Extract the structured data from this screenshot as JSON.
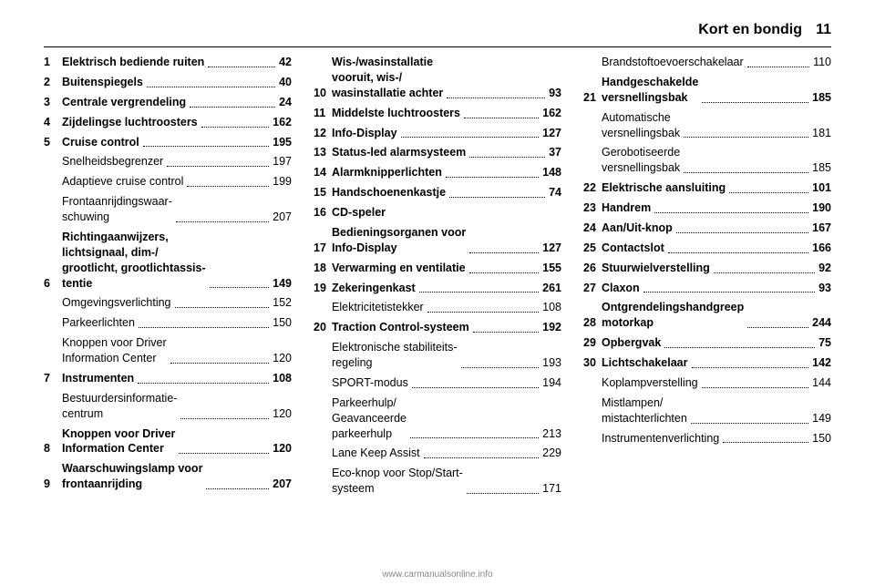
{
  "header": {
    "title": "Kort en bondig",
    "page_number": "11"
  },
  "footer": {
    "url": "www.carmanualsonline.info"
  },
  "columns": [
    [
      {
        "n": "1",
        "label": "Elektrisch bediende ruiten",
        "page": "42"
      },
      {
        "n": "2",
        "label": "Buitenspiegels",
        "page": "40"
      },
      {
        "n": "3",
        "label": "Centrale vergrendeling",
        "page": "24"
      },
      {
        "n": "4",
        "label": "Zijdelingse luchtroosters",
        "page": "162"
      },
      {
        "n": "5",
        "label": "Cruise control",
        "page": "195"
      },
      {
        "n": "",
        "label": "Snelheidsbegrenzer",
        "page": "197",
        "sub": true
      },
      {
        "n": "",
        "label": "Adaptieve cruise control",
        "page": "199",
        "sub": true
      },
      {
        "n": "",
        "label": "Frontaanrijdingswaar-\nschuwing",
        "page": "207",
        "sub": true
      },
      {
        "n": "6",
        "label": "Richtingaanwijzers,\nlichtsignaal, dim-/\ngrootlicht, grootlichtassis-\ntentie",
        "page": "149"
      },
      {
        "n": "",
        "label": "Omgevingsverlichting",
        "page": "152",
        "sub": true
      },
      {
        "n": "",
        "label": "Parkeerlichten",
        "page": "150",
        "sub": true
      },
      {
        "n": "",
        "label": "Knoppen voor Driver\nInformation Center",
        "page": "120",
        "sub": true
      },
      {
        "n": "7",
        "label": "Instrumenten",
        "page": "108"
      },
      {
        "n": "",
        "label": "Bestuurdersinformatie-\ncentrum",
        "page": "120",
        "sub": true
      },
      {
        "n": "8",
        "label": "Knoppen voor Driver\nInformation Center",
        "page": "120"
      },
      {
        "n": "9",
        "label": "Waarschuwingslamp voor\nfrontaanrijding",
        "page": "207"
      }
    ],
    [
      {
        "n": "10",
        "label": "Wis-/wasinstallatie\nvooruit, wis-/\nwasinstallatie achter",
        "page": "93"
      },
      {
        "n": "11",
        "label": "Middelste luchtroosters",
        "page": "162"
      },
      {
        "n": "12",
        "label": "Info-Display",
        "page": "127"
      },
      {
        "n": "13",
        "label": "Status-led alarmsysteem",
        "page": "37"
      },
      {
        "n": "14",
        "label": "Alarmknipperlichten",
        "page": "148"
      },
      {
        "n": "15",
        "label": "Handschoenenkastje",
        "page": "74"
      },
      {
        "n": "16",
        "label": "CD-speler",
        "page": ""
      },
      {
        "n": "17",
        "label": "Bedieningsorganen voor\nInfo-Display",
        "page": "127"
      },
      {
        "n": "18",
        "label": "Verwarming en ventilatie",
        "page": "155"
      },
      {
        "n": "19",
        "label": "Zekeringenkast",
        "page": "261"
      },
      {
        "n": "",
        "label": "Elektricitetistekker",
        "page": "108",
        "sub": true
      },
      {
        "n": "20",
        "label": "Traction Control-systeem",
        "page": "192"
      },
      {
        "n": "",
        "label": "Elektronische stabiliteits-\nregeling",
        "page": "193",
        "sub": true
      },
      {
        "n": "",
        "label": "SPORT-modus",
        "page": "194",
        "sub": true
      },
      {
        "n": "",
        "label": "Parkeerhulp/\nGeavanceerde\nparkeerhulp",
        "page": "213",
        "sub": true
      },
      {
        "n": "",
        "label": "Lane Keep Assist",
        "page": "229",
        "sub": true
      },
      {
        "n": "",
        "label": "Eco-knop voor Stop/Start-\nsysteem",
        "page": "171",
        "sub": true
      }
    ],
    [
      {
        "n": "",
        "label": "Brandstoftoevoerschakelaar",
        "page": "110",
        "sub": true
      },
      {
        "n": "21",
        "label": "Handgeschakelde\nversnellingsbak",
        "page": "185"
      },
      {
        "n": "",
        "label": "Automatische\nversnellingsbak",
        "page": "181",
        "sub": true
      },
      {
        "n": "",
        "label": "Gerobotiseerde\nversnellingsbak",
        "page": "185",
        "sub": true
      },
      {
        "n": "22",
        "label": "Elektrische aansluiting",
        "page": "101"
      },
      {
        "n": "23",
        "label": "Handrem",
        "page": "190"
      },
      {
        "n": "24",
        "label": "Aan/Uit-knop",
        "page": "167"
      },
      {
        "n": "25",
        "label": "Contactslot",
        "page": "166"
      },
      {
        "n": "26",
        "label": "Stuurwielverstelling",
        "page": "92"
      },
      {
        "n": "27",
        "label": "Claxon",
        "page": "93"
      },
      {
        "n": "28",
        "label": "Ontgrendelingshandgreep\nmotorkap",
        "page": "244"
      },
      {
        "n": "29",
        "label": "Opbergvak",
        "page": "75"
      },
      {
        "n": "30",
        "label": "Lichtschakelaar",
        "page": "142"
      },
      {
        "n": "",
        "label": "Koplampverstelling",
        "page": "144",
        "sub": true
      },
      {
        "n": "",
        "label": "Mistlampen/\nmistachterlichten",
        "page": "149",
        "sub": true
      },
      {
        "n": "",
        "label": "Instrumentenverlichting",
        "page": "150",
        "sub": true
      }
    ]
  ]
}
